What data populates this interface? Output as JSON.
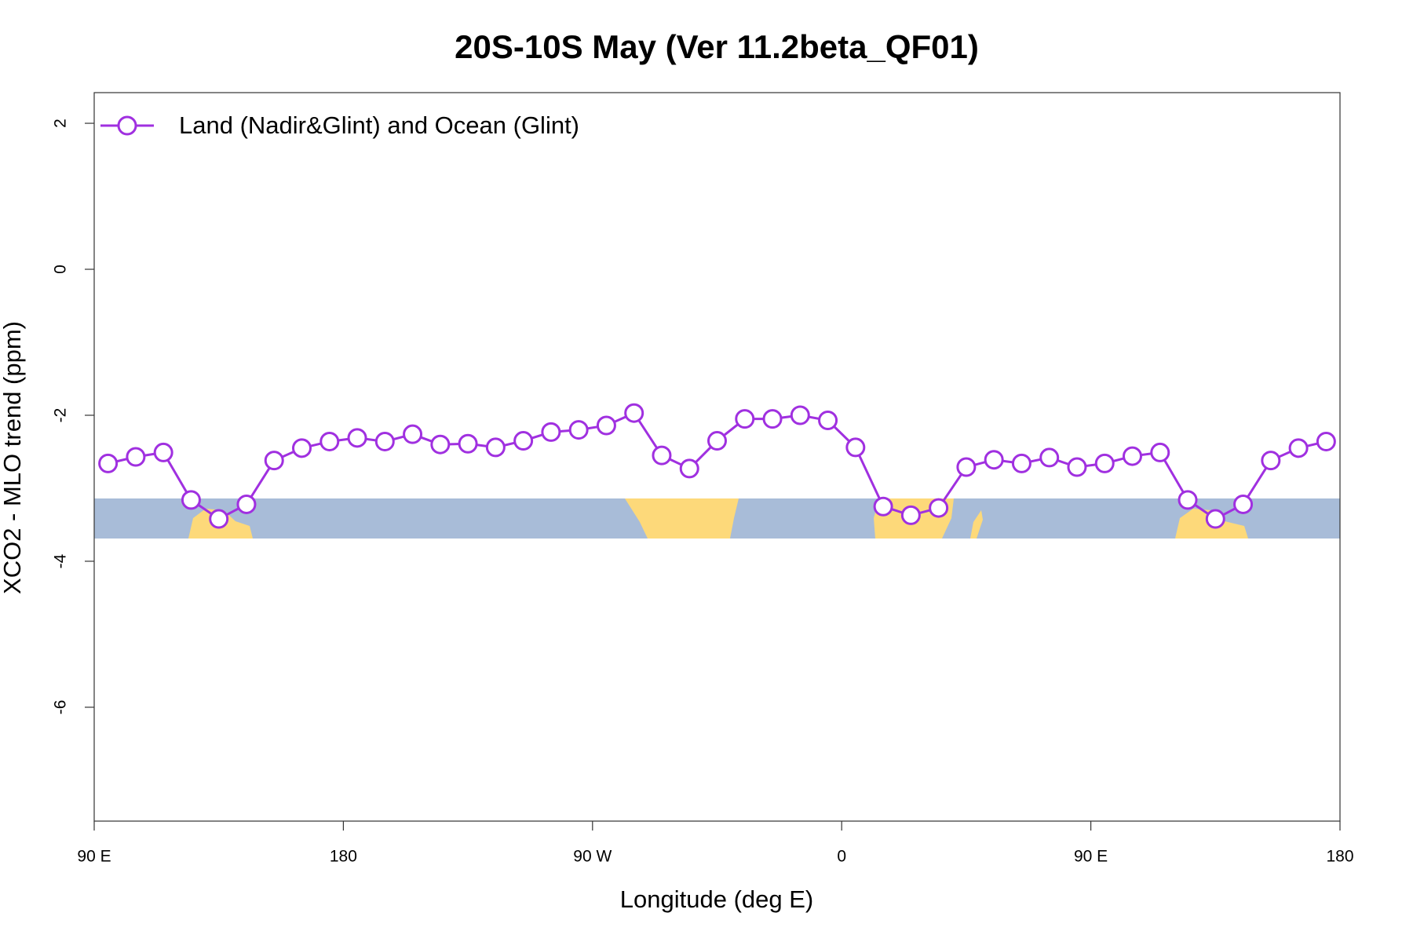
{
  "chart_data": {
    "type": "line",
    "title": "20S-10S May (Ver 11.2beta_QF01)",
    "x_label": "Longitude (deg E)",
    "y_label": "XCO2 - MLO trend (ppm)",
    "x": [
      95,
      105,
      115,
      125,
      135,
      145,
      155,
      165,
      175,
      185,
      195,
      205,
      215,
      225,
      235,
      245,
      255,
      265,
      275,
      285,
      295,
      305,
      315,
      325,
      335,
      345,
      355,
      365,
      375,
      385,
      395,
      405,
      415,
      425,
      435,
      445,
      455,
      465,
      475,
      485,
      495,
      505,
      515,
      525,
      535
    ],
    "series": [
      {
        "name": "Land (Nadir&Glint) and Ocean (Glint)",
        "color": "#a030e0",
        "values": [
          -2.66,
          -2.57,
          -2.51,
          -3.16,
          -3.42,
          -3.22,
          -2.62,
          -2.45,
          -2.36,
          -2.31,
          -2.36,
          -2.26,
          -2.4,
          -2.39,
          -2.44,
          -2.35,
          -2.23,
          -2.2,
          -2.14,
          -1.97,
          -2.55,
          -2.73,
          -2.35,
          -2.05,
          -2.05,
          -2.0,
          -2.07,
          -2.44,
          -3.25,
          -3.37,
          -3.27,
          -2.71,
          -2.61,
          -2.66,
          -2.58,
          -2.71,
          -2.66,
          -2.56,
          -2.51,
          -3.16,
          -3.42,
          -3.22,
          -2.62,
          -2.45,
          -2.36
        ]
      }
    ],
    "xlim": [
      90,
      540
    ],
    "ylim": [
      -7.56,
      2.42
    ],
    "xticks": [
      {
        "value": 90,
        "label": "90 E"
      },
      180,
      {
        "value": 270,
        "label": "90 W"
      },
      {
        "value": 360,
        "label": "0"
      },
      {
        "value": 450,
        "label": "90 E"
      },
      {
        "value": 540,
        "label": "180"
      }
    ],
    "yticks": [
      2,
      0,
      -2,
      -4,
      -6
    ],
    "legend": "top-left"
  }
}
